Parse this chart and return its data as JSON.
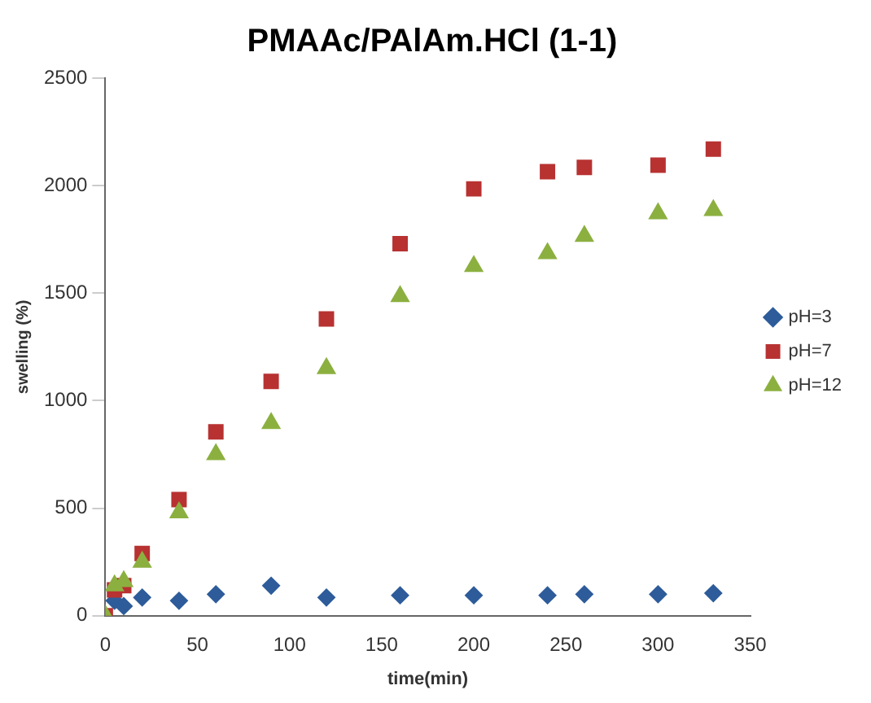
{
  "chart_data": {
    "type": "scatter",
    "title": "PMAAc/PAlAm.HCl (1-1)",
    "xlabel": "time(min)",
    "ylabel": "swelling (%)",
    "x": [
      0,
      5,
      10,
      20,
      40,
      60,
      90,
      120,
      160,
      200,
      240,
      260,
      300,
      330
    ],
    "series": [
      {
        "name": "pH=3",
        "color": "#2e5c9a",
        "marker": "diamond",
        "values": [
          null,
          70,
          45,
          85,
          70,
          100,
          140,
          85,
          95,
          95,
          95,
          100,
          100,
          105
        ]
      },
      {
        "name": "pH=7",
        "color": "#b83232",
        "marker": "square",
        "values": [
          0,
          120,
          140,
          290,
          540,
          855,
          1090,
          1380,
          1730,
          1985,
          2065,
          2085,
          2095,
          2170
        ]
      },
      {
        "name": "pH=12",
        "color": "#8cb040",
        "marker": "triangle",
        "values": [
          0,
          140,
          160,
          250,
          480,
          750,
          895,
          1150,
          1485,
          1625,
          1685,
          1765,
          1870,
          1885
        ]
      }
    ],
    "xlim": [
      0,
      350
    ],
    "xticks": [
      0,
      50,
      100,
      150,
      200,
      250,
      300,
      350
    ],
    "ylim": [
      0,
      2500
    ],
    "yticks": [
      0,
      500,
      1000,
      1500,
      2000,
      2500
    ],
    "grid": false,
    "legend": "right"
  }
}
